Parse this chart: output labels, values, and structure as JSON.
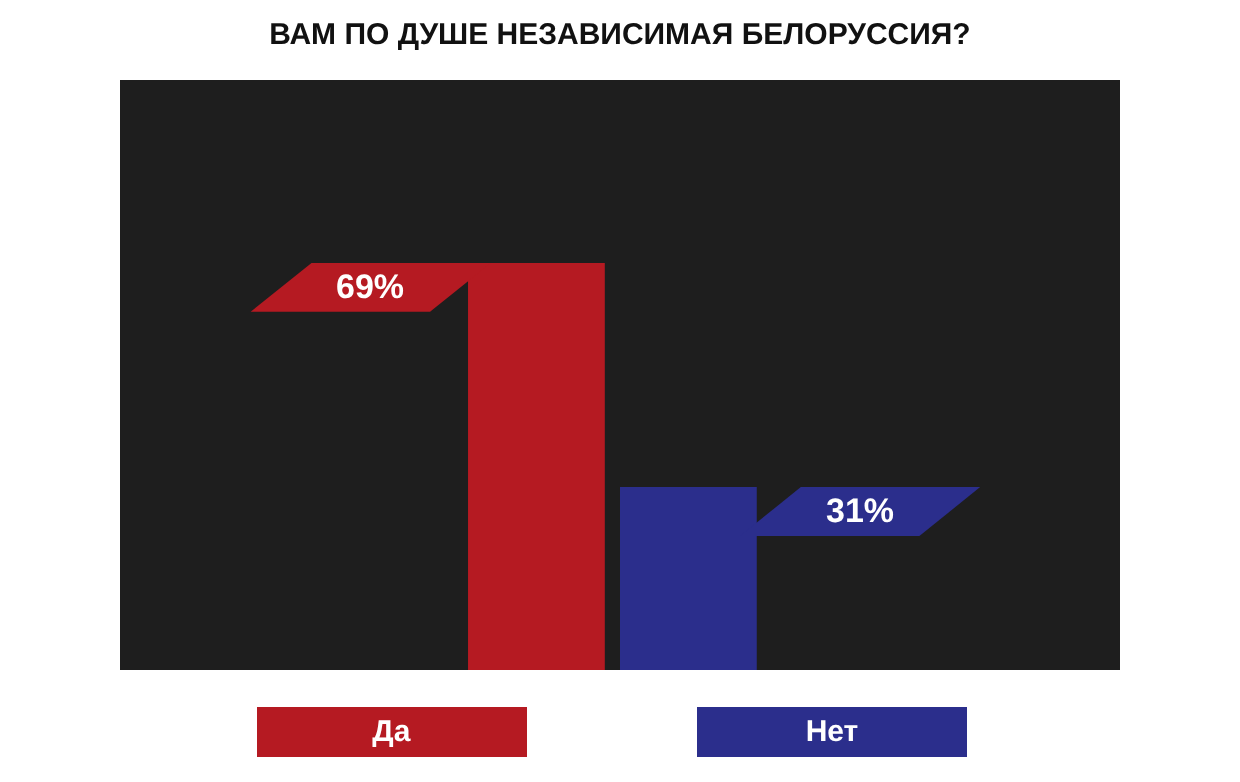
{
  "chart_data": {
    "type": "bar",
    "title": "ВАМ ПО ДУШЕ НЕЗАВИСИМАЯ БЕЛОРУССИЯ?",
    "categories": [
      "Да",
      "Нет"
    ],
    "values": [
      69,
      31
    ],
    "colors": [
      "#b51a22",
      "#2b2e8c"
    ],
    "value_labels": [
      "69%",
      "31%"
    ],
    "ylim": [
      0,
      100
    ]
  }
}
